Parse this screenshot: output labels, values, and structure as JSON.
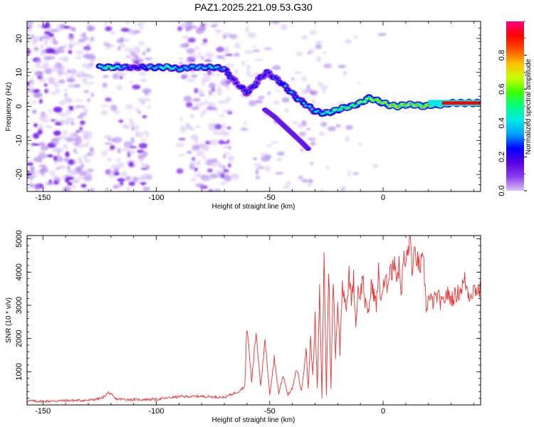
{
  "title": "PAZ1.2025.221.09.53.G30",
  "chart_data": [
    {
      "type": "heatmap",
      "xlabel": "Height of straight line (km)",
      "ylabel": "Frequency (Hz)",
      "colorbar_label": "Normalized spectral amplitude",
      "xlim": [
        -157,
        43
      ],
      "ylim": [
        -25,
        25
      ],
      "xticks": [
        -150,
        -100,
        -50,
        0
      ],
      "yticks": [
        -20,
        -10,
        0,
        10,
        20
      ],
      "colorbar_ticks": [
        0.0,
        0.2,
        0.4,
        0.6,
        0.8
      ],
      "colorbar_range": [
        0,
        1
      ],
      "colormap": [
        "#ffffff",
        "#d8c2f4",
        "#8a3ef0",
        "#5a00e0",
        "#0000ff",
        "#00a0ff",
        "#00e8e8",
        "#00ff80",
        "#40ff00",
        "#c8ff00",
        "#ffc000",
        "#ff5000",
        "#ff0000",
        "#ff0080"
      ],
      "ridge_x": [
        -125,
        -120,
        -110,
        -100,
        -95,
        -90,
        -85,
        -80,
        -75,
        -70,
        -65,
        -60,
        -57,
        -54,
        -51,
        -48,
        -45,
        -42,
        -38,
        -34,
        -30,
        -26,
        -22,
        -18,
        -14,
        -10,
        -6,
        -2,
        2,
        6,
        10,
        14,
        18,
        22,
        26,
        30,
        35,
        43
      ],
      "ridge_freq": [
        11.5,
        11.5,
        11.5,
        11.5,
        11.5,
        11.0,
        11.5,
        11.5,
        11.5,
        11.0,
        7.0,
        4.0,
        6.0,
        8.5,
        10.0,
        8.5,
        7.0,
        5.0,
        2.5,
        0.5,
        -1.5,
        -2.0,
        -1.5,
        -0.5,
        0.0,
        1.0,
        2.5,
        1.5,
        0.5,
        0.0,
        0.5,
        0.5,
        0.0,
        0.5,
        0.5,
        1.0,
        1.0,
        1.0
      ],
      "ridge_amplitude": [
        0.55,
        0.7,
        0.3,
        0.55,
        0.65,
        0.5,
        0.5,
        0.5,
        0.55,
        0.45,
        0.3,
        0.35,
        0.35,
        0.35,
        0.4,
        0.35,
        0.4,
        0.45,
        0.5,
        0.5,
        0.55,
        0.6,
        0.7,
        0.7,
        0.7,
        0.75,
        0.8,
        0.85,
        0.85,
        0.9,
        0.85,
        0.85,
        0.9,
        0.95,
        0.9,
        0.95,
        0.95,
        0.95
      ],
      "branch_x": [
        -52,
        -48,
        -44,
        -40,
        -36,
        -33
      ],
      "branch_freq": [
        -1.0,
        -3.0,
        -5.5,
        -8.0,
        -10.5,
        -12.5
      ]
    },
    {
      "type": "line",
      "xlabel": "Height of straight line (km)",
      "ylabel": "SNR (10 * v/v)",
      "xlim": [
        -157,
        43
      ],
      "ylim": [
        0,
        5100
      ],
      "xticks": [
        -150,
        -100,
        -50,
        0
      ],
      "yticks": [
        1000,
        2000,
        3000,
        4000,
        5000
      ],
      "series": [
        {
          "color": "#ee3030",
          "x": [
            -157,
            -150,
            -140,
            -130,
            -124,
            -121,
            -118,
            -110,
            -100,
            -90,
            -80,
            -70,
            -64,
            -61,
            -60,
            -58,
            -56,
            -54,
            -52,
            -50,
            -48,
            -46,
            -44,
            -42,
            -40,
            -38,
            -36,
            -34,
            -33,
            -32,
            -31,
            -30,
            -29,
            -28,
            -27,
            -26,
            -25,
            -24,
            -23,
            -22,
            -21,
            -20,
            -19,
            -18,
            -17,
            -16,
            -15,
            -14,
            -13,
            -12,
            -11,
            -10,
            -9,
            -8,
            -7,
            -6,
            -5,
            -4,
            -3,
            -2,
            -1,
            0,
            1,
            2,
            3,
            4,
            5,
            6,
            7,
            8,
            9,
            10,
            11,
            12,
            13,
            14,
            15,
            16,
            17,
            18,
            19,
            20,
            22,
            24,
            26,
            28,
            30,
            32,
            34,
            36,
            38,
            40,
            43
          ],
          "y": [
            120,
            110,
            130,
            140,
            200,
            380,
            180,
            160,
            170,
            250,
            260,
            230,
            400,
            560,
            2400,
            700,
            2200,
            600,
            1900,
            300,
            1400,
            350,
            900,
            300,
            500,
            1100,
            400,
            1700,
            500,
            2000,
            900,
            2600,
            500,
            3400,
            200,
            4400,
            300,
            4200,
            500,
            3800,
            1500,
            3100,
            1600,
            3700,
            3300,
            2900,
            3900,
            3200,
            3800,
            2400,
            3500,
            3300,
            3900,
            3100,
            2800,
            3000,
            3700,
            3300,
            3000,
            4000,
            3200,
            3500,
            3700,
            3600,
            4300,
            3900,
            4500,
            3800,
            4200,
            3400,
            4400,
            4200,
            4700,
            5050,
            3900,
            4600,
            4400,
            4100,
            4300,
            4150,
            2900,
            3200,
            3100,
            3300,
            3000,
            3350,
            3200,
            3300,
            3450,
            3750,
            3300,
            3500,
            3450
          ]
        }
      ]
    }
  ]
}
